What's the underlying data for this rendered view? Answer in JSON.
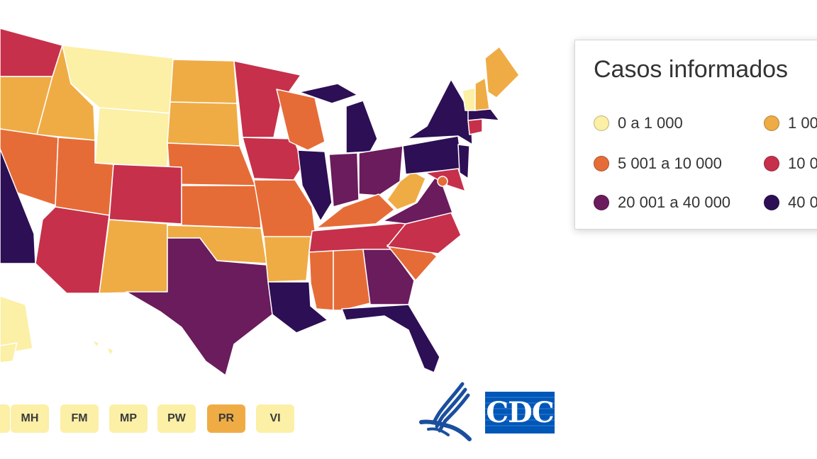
{
  "colors": {
    "tier1": "#fcefa6",
    "tier2": "#efac45",
    "tier3": "#e66c37",
    "tier4": "#c6304b",
    "tier5": "#6a1c5c",
    "tier6": "#2d0f55",
    "border": "#ffffff"
  },
  "legend": {
    "title": "Casos informados",
    "items": [
      {
        "label": "0 a 1 000",
        "color": "#fcefa6"
      },
      {
        "label": "1 00",
        "color": "#efac45"
      },
      {
        "label": "5 001 a 10 000",
        "color": "#e66c37"
      },
      {
        "label": "10 0",
        "color": "#c6304b"
      },
      {
        "label": "20 001 a 40 000",
        "color": "#6a1c5c"
      },
      {
        "label": "40 0",
        "color": "#2d0f55"
      }
    ]
  },
  "territories": [
    {
      "code": "",
      "color": "#fcefa6"
    },
    {
      "code": "MH",
      "color": "#fcefa6"
    },
    {
      "code": "FM",
      "color": "#fcefa6"
    },
    {
      "code": "MP",
      "color": "#fcefa6"
    },
    {
      "code": "PW",
      "color": "#fcefa6"
    },
    {
      "code": "PR",
      "color": "#efac45"
    },
    {
      "code": "VI",
      "color": "#fcefa6"
    }
  ],
  "logos": {
    "hhs": "hhs-eagle-icon",
    "cdc": "CDC"
  }
}
